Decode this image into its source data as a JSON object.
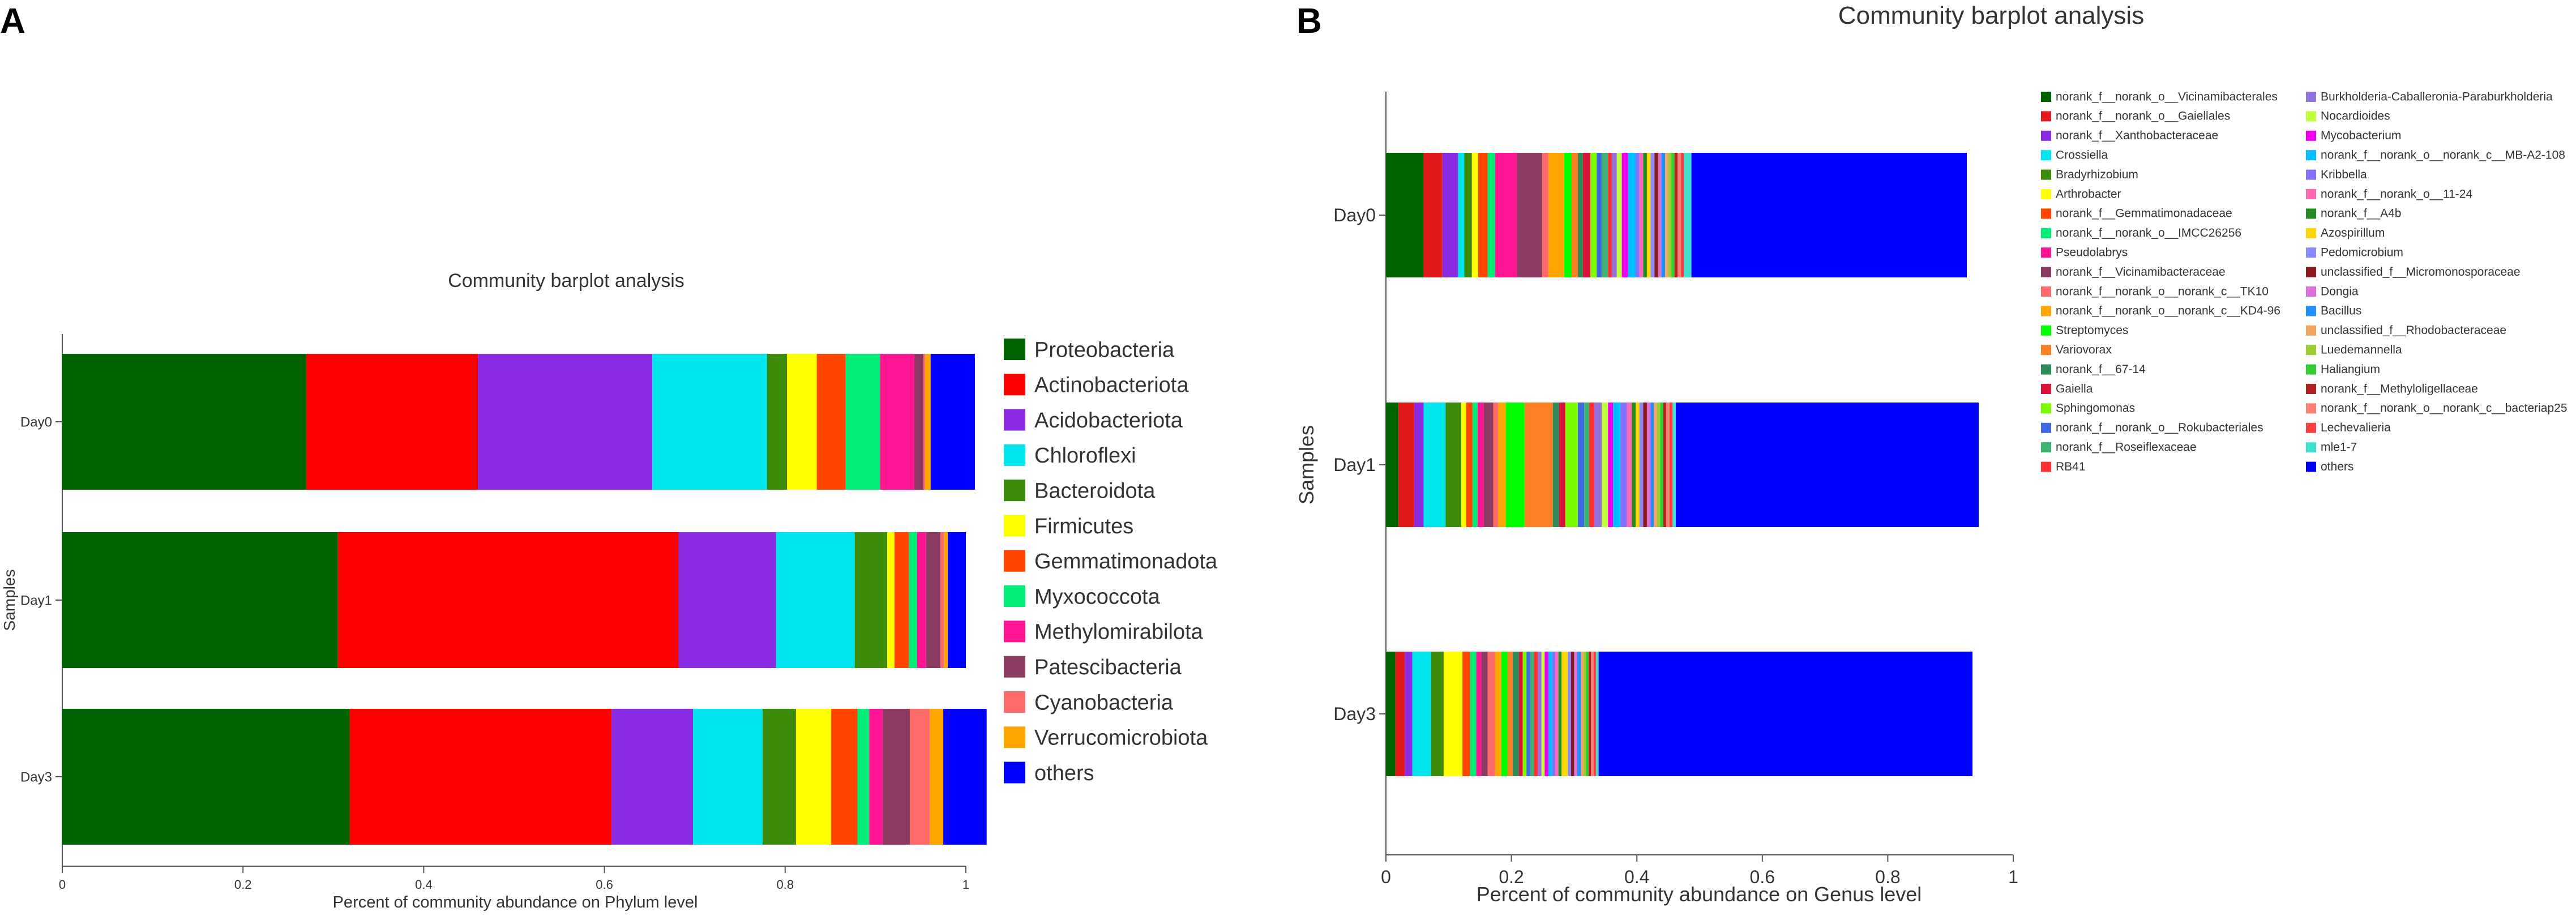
{
  "panels": {
    "a": "A",
    "b": "B"
  },
  "chart_data": [
    {
      "type": "stacked-bar-horizontal",
      "title": "Community barplot analysis",
      "xlabel": "Percent of community abundance on Phylum level",
      "ylabel": "Samples",
      "xlim": [
        0,
        1
      ],
      "xticks": [
        "0",
        "0.2",
        "0.4",
        "0.6",
        "0.8",
        "1"
      ],
      "categories": [
        "Day0",
        "Day1",
        "Day3"
      ],
      "legend_position": "right",
      "series": [
        {
          "name": "Proteobacteria",
          "color": "#006400",
          "values": [
            0.27,
            0.305,
            0.318
          ]
        },
        {
          "name": "Actinobacteriota",
          "color": "#ff0000",
          "values": [
            0.19,
            0.377,
            0.29
          ]
        },
        {
          "name": "Acidobacteriota",
          "color": "#8a2be2",
          "values": [
            0.193,
            0.108,
            0.09
          ]
        },
        {
          "name": "Chloroflexi",
          "color": "#00e5ee",
          "values": [
            0.127,
            0.087,
            0.077
          ]
        },
        {
          "name": "Bacteroidota",
          "color": "#3d8b0a",
          "values": [
            0.022,
            0.036,
            0.037
          ]
        },
        {
          "name": "Firmicutes",
          "color": "#ffff00",
          "values": [
            0.033,
            0.008,
            0.039
          ]
        },
        {
          "name": "Gemmatimonadota",
          "color": "#ff4500",
          "values": [
            0.032,
            0.016,
            0.029
          ]
        },
        {
          "name": "Myxococcota",
          "color": "#00ee76",
          "values": [
            0.038,
            0.009,
            0.013
          ]
        },
        {
          "name": "Methylomirabilota",
          "color": "#ff1493",
          "values": [
            0.038,
            0.01,
            0.015
          ]
        },
        {
          "name": "Patescibacteria",
          "color": "#8b3a62",
          "values": [
            0.01,
            0.016,
            0.03
          ]
        },
        {
          "name": "Cyanobacteria",
          "color": "#ff6a6a",
          "values": [
            0.002,
            0.004,
            0.022
          ]
        },
        {
          "name": "Verrucomicrobiota",
          "color": "#ffa500",
          "values": [
            0.006,
            0.004,
            0.015
          ]
        },
        {
          "name": "others",
          "color": "#0000ff",
          "values": [
            0.049,
            0.02,
            0.048
          ]
        }
      ]
    },
    {
      "type": "stacked-bar-horizontal",
      "title": "Community barplot analysis",
      "xlabel": "Percent of community abundance on Genus level",
      "ylabel": "Samples",
      "xlim": [
        0,
        1
      ],
      "xticks": [
        "0",
        "0.2",
        "0.4",
        "0.6",
        "0.8",
        "1"
      ],
      "categories": [
        "Day0",
        "Day1",
        "Day3"
      ],
      "legend_position": "right",
      "series": [
        {
          "name": "norank_f__norank_o__Vicinamibacterales",
          "color": "#006400",
          "values": [
            0.06,
            0.02,
            0.015
          ]
        },
        {
          "name": "norank_f__norank_o__Gaiellales",
          "color": "#e31a1c",
          "values": [
            0.03,
            0.025,
            0.015
          ]
        },
        {
          "name": "norank_f__Xanthobacteraceae",
          "color": "#8a2be2",
          "values": [
            0.025,
            0.015,
            0.012
          ]
        },
        {
          "name": "Crossiella",
          "color": "#00e5ee",
          "values": [
            0.01,
            0.035,
            0.03
          ]
        },
        {
          "name": "Bradyrhizobium",
          "color": "#3d8b0a",
          "values": [
            0.012,
            0.025,
            0.02
          ]
        },
        {
          "name": "Arthrobacter",
          "color": "#ffff00",
          "values": [
            0.01,
            0.008,
            0.03
          ]
        },
        {
          "name": "norank_f__Gemmatimonadaceae",
          "color": "#ff4500",
          "values": [
            0.015,
            0.01,
            0.012
          ]
        },
        {
          "name": "norank_f__norank_o__IMCC26256",
          "color": "#00ee76",
          "values": [
            0.012,
            0.008,
            0.01
          ]
        },
        {
          "name": "Pseudolabrys",
          "color": "#ff1493",
          "values": [
            0.035,
            0.01,
            0.008
          ]
        },
        {
          "name": "norank_f__Vicinamibacteraceae",
          "color": "#8b3a62",
          "values": [
            0.04,
            0.015,
            0.01
          ]
        },
        {
          "name": "norank_f__norank_o__norank_c__TK10",
          "color": "#ff6a6a",
          "values": [
            0.01,
            0.008,
            0.012
          ]
        },
        {
          "name": "norank_f__norank_o__norank_c__KD4-96",
          "color": "#ffa500",
          "values": [
            0.025,
            0.012,
            0.01
          ]
        },
        {
          "name": "Streptomyces",
          "color": "#00ff00",
          "values": [
            0.012,
            0.03,
            0.01
          ]
        },
        {
          "name": "Variovorax",
          "color": "#ff7f24",
          "values": [
            0.01,
            0.045,
            0.008
          ]
        },
        {
          "name": "norank_f__67-14",
          "color": "#2e8b57",
          "values": [
            0.008,
            0.01,
            0.01
          ]
        },
        {
          "name": "Gaiella",
          "color": "#dc143c",
          "values": [
            0.012,
            0.01,
            0.006
          ]
        },
        {
          "name": "Sphingomonas",
          "color": "#7cfc00",
          "values": [
            0.01,
            0.02,
            0.006
          ]
        },
        {
          "name": "norank_f__norank_o__Rokubacteriales",
          "color": "#4169e1",
          "values": [
            0.008,
            0.01,
            0.006
          ]
        },
        {
          "name": "norank_f__Roseiflexaceae",
          "color": "#3cb371",
          "values": [
            0.01,
            0.008,
            0.006
          ]
        },
        {
          "name": "RB41",
          "color": "#ff3030",
          "values": [
            0.006,
            0.008,
            0.006
          ]
        },
        {
          "name": "Burkholderia-Caballeronia-Paraburkholderia",
          "color": "#9370db",
          "values": [
            0.008,
            0.012,
            0.006
          ]
        },
        {
          "name": "Nocardioides",
          "color": "#c0ff3e",
          "values": [
            0.008,
            0.01,
            0.005
          ]
        },
        {
          "name": "Mycobacterium",
          "color": "#ee00ee",
          "values": [
            0.01,
            0.008,
            0.006
          ]
        },
        {
          "name": "norank_f__norank_o__norank_c__MB-A2-108",
          "color": "#00bfff",
          "values": [
            0.012,
            0.012,
            0.006
          ]
        },
        {
          "name": "Kribbella",
          "color": "#8470ff",
          "values": [
            0.006,
            0.01,
            0.005
          ]
        },
        {
          "name": "norank_f__norank_o__11-24",
          "color": "#ff69b4",
          "values": [
            0.006,
            0.008,
            0.005
          ]
        },
        {
          "name": "norank_f__A4b",
          "color": "#228b22",
          "values": [
            0.006,
            0.006,
            0.005
          ]
        },
        {
          "name": "Azospirillum",
          "color": "#ffd700",
          "values": [
            0.006,
            0.006,
            0.01
          ]
        },
        {
          "name": "Pedomicrobium",
          "color": "#8a8aff",
          "values": [
            0.006,
            0.006,
            0.005
          ]
        },
        {
          "name": "unclassified_f__Micromonosporaceae",
          "color": "#8b1a1a",
          "values": [
            0.006,
            0.006,
            0.005
          ]
        },
        {
          "name": "Dongia",
          "color": "#da70d6",
          "values": [
            0.005,
            0.006,
            0.005
          ]
        },
        {
          "name": "Bacillus",
          "color": "#1e90ff",
          "values": [
            0.006,
            0.005,
            0.006
          ]
        },
        {
          "name": "unclassified_f__Rhodobacteraceae",
          "color": "#f4a460",
          "values": [
            0.005,
            0.005,
            0.004
          ]
        },
        {
          "name": "Luedemannella",
          "color": "#9acd32",
          "values": [
            0.005,
            0.005,
            0.004
          ]
        },
        {
          "name": "Haliangium",
          "color": "#32cd32",
          "values": [
            0.005,
            0.005,
            0.004
          ]
        },
        {
          "name": "norank_f__Methyloligellaceae",
          "color": "#b22222",
          "values": [
            0.005,
            0.005,
            0.004
          ]
        },
        {
          "name": "norank_f__norank_o__norank_c__bacteriap25",
          "color": "#fa8072",
          "values": [
            0.005,
            0.005,
            0.004
          ]
        },
        {
          "name": "Lechevalieria",
          "color": "#ff4040",
          "values": [
            0.005,
            0.005,
            0.004
          ]
        },
        {
          "name": "mle1-7",
          "color": "#40e0d0",
          "values": [
            0.012,
            0.005,
            0.004
          ]
        },
        {
          "name": "others",
          "color": "#0000ff",
          "values": [
            0.439,
            0.483,
            0.596
          ]
        }
      ]
    }
  ]
}
